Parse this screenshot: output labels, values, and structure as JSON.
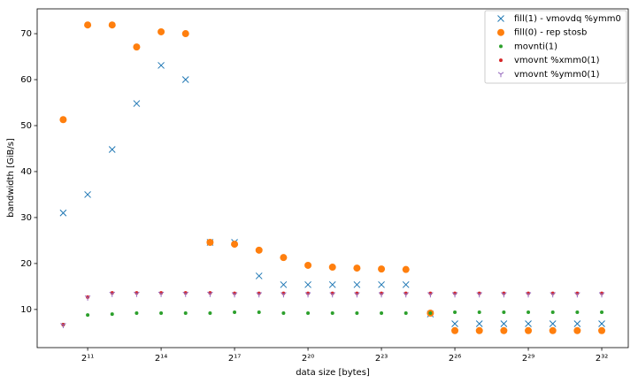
{
  "chart_data": {
    "type": "scatter",
    "x_label": "data size [bytes]",
    "y_label": "bandwidth [GiB/s]",
    "x_scale": "log2",
    "x": [
      1024,
      2048,
      4096,
      8192,
      16384,
      32768,
      65536,
      131072,
      262144,
      524288,
      1048576,
      2097152,
      4194304,
      8388608,
      16777216,
      33554432,
      67108864,
      134217728,
      268435456,
      536870912,
      1073741824,
      2147483648,
      4294967296
    ],
    "xlim": [
      490,
      9100000000
    ],
    "xticks": [
      {
        "value": 2048,
        "label": "2¹¹"
      },
      {
        "value": 16384,
        "label": "2¹⁴"
      },
      {
        "value": 131072,
        "label": "2¹⁷"
      },
      {
        "value": 1048576,
        "label": "2²⁰"
      },
      {
        "value": 8388608,
        "label": "2²³"
      },
      {
        "value": 67108864,
        "label": "2²⁶"
      },
      {
        "value": 536870912,
        "label": "2²⁹"
      },
      {
        "value": 4294967296,
        "label": "2³²"
      }
    ],
    "ylim": [
      1.7,
      75.4
    ],
    "yticks": [
      10,
      20,
      30,
      40,
      50,
      60,
      70
    ],
    "legend": "upper right",
    "series": [
      {
        "name": "fill(1) - vmovdq %ymm0",
        "color": "#1f77b4",
        "marker": "x",
        "values": [
          31,
          35,
          44.8,
          54.8,
          63.1,
          60,
          24.6,
          24.6,
          17.3,
          15.4,
          15.4,
          15.4,
          15.4,
          15.4,
          15.4,
          9.0,
          6.9,
          6.9,
          6.9,
          6.9,
          6.9,
          6.9,
          6.9
        ]
      },
      {
        "name": "fill(0) - rep stosb",
        "color": "#ff7f0e",
        "marker": "o",
        "values": [
          51.3,
          71.9,
          71.9,
          67.1,
          70.4,
          70,
          24.6,
          24.2,
          22.9,
          21.3,
          19.6,
          19.2,
          19.0,
          18.8,
          18.7,
          9.2,
          5.4,
          5.4,
          5.4,
          5.4,
          5.4,
          5.4,
          5.4
        ]
      },
      {
        "name": "movnti(1)",
        "color": "#2ca02c",
        "marker": ".",
        "values": [
          6.7,
          8.8,
          9.0,
          9.2,
          9.2,
          9.2,
          9.2,
          9.4,
          9.4,
          9.2,
          9.2,
          9.2,
          9.2,
          9.2,
          9.2,
          9.2,
          9.4,
          9.4,
          9.4,
          9.4,
          9.4,
          9.4,
          9.4
        ]
      },
      {
        "name": "vmovnt %xmm0(1)",
        "color": "#d62728",
        "marker": ".",
        "values": [
          6.7,
          12.7,
          13.6,
          13.6,
          13.6,
          13.6,
          13.6,
          13.5,
          13.5,
          13.5,
          13.5,
          13.5,
          13.5,
          13.5,
          13.5,
          13.5,
          13.5,
          13.5,
          13.5,
          13.5,
          13.5,
          13.5,
          13.5
        ]
      },
      {
        "name": "vmovnt %ymm0(1)",
        "color": "#9467bd",
        "marker": "v",
        "values": [
          6.6,
          12.6,
          13.4,
          13.4,
          13.4,
          13.4,
          13.4,
          13.3,
          13.3,
          13.3,
          13.3,
          13.3,
          13.3,
          13.3,
          13.3,
          13.3,
          13.3,
          13.3,
          13.3,
          13.3,
          13.3,
          13.3,
          13.3
        ]
      }
    ]
  }
}
